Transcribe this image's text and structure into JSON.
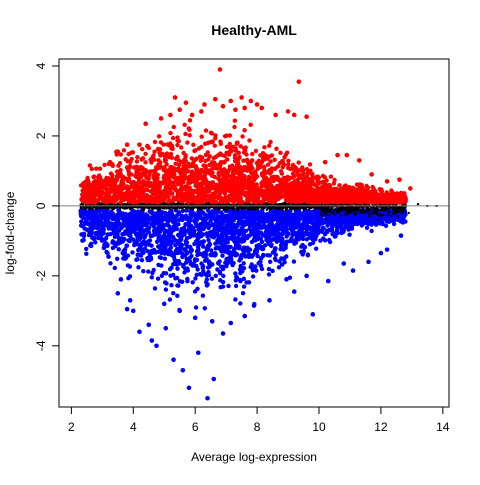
{
  "chart_data": {
    "type": "scatter",
    "title": "Healthy-AML",
    "xlabel": "Average log-expression",
    "ylabel": "log-fold-change",
    "xlim": [
      1.6,
      14.2
    ],
    "ylim": [
      -5.75,
      4.2
    ],
    "x_ticks": [
      2,
      4,
      6,
      8,
      10,
      12,
      14
    ],
    "x_tick_labels": [
      "2",
      "4",
      "6",
      "8",
      "10",
      "12",
      "14"
    ],
    "y_ticks": [
      -4,
      -2,
      0,
      2,
      4
    ],
    "y_tick_labels": [
      "-4",
      "-2",
      "0",
      "2",
      "4"
    ],
    "grid": false,
    "reference_line": {
      "y": 0,
      "color": "#808080"
    },
    "series": [
      {
        "color": "#ff0000",
        "description": "up-regulated",
        "points": [
          [
            6.8,
            3.9
          ],
          [
            9.35,
            3.55
          ],
          [
            5.35,
            3.1
          ],
          [
            6.65,
            3.05
          ],
          [
            5.7,
            2.95
          ],
          [
            7.15,
            3.0
          ],
          [
            7.5,
            3.1
          ],
          [
            7.8,
            3.0
          ],
          [
            8.0,
            2.9
          ],
          [
            8.15,
            2.8
          ],
          [
            8.6,
            2.6
          ],
          [
            9.0,
            2.7
          ],
          [
            9.2,
            2.6
          ],
          [
            9.6,
            2.55
          ],
          [
            6.2,
            2.7
          ],
          [
            6.9,
            2.85
          ],
          [
            5.9,
            2.6
          ],
          [
            6.3,
            2.9
          ],
          [
            4.9,
            2.5
          ],
          [
            5.2,
            2.6
          ],
          [
            5.5,
            2.75
          ],
          [
            7.3,
            2.75
          ],
          [
            7.6,
            2.8
          ],
          [
            4.4,
            2.35
          ],
          [
            4.2,
            1.75
          ],
          [
            3.8,
            1.75
          ],
          [
            3.5,
            1.55
          ],
          [
            10.6,
            1.45
          ],
          [
            10.9,
            1.45
          ],
          [
            11.3,
            1.3
          ],
          [
            12.6,
            0.75
          ],
          [
            12.95,
            0.5
          ],
          [
            11.7,
            0.9
          ],
          [
            12.2,
            0.7
          ],
          [
            10.2,
            1.25
          ],
          [
            12.7,
            0.35
          ],
          [
            3.0,
            0.6
          ],
          [
            3.25,
            1.25
          ]
        ]
      },
      {
        "color": "#0000ff",
        "description": "down-regulated",
        "points": [
          [
            6.4,
            -5.5
          ],
          [
            5.8,
            -5.2
          ],
          [
            6.6,
            -4.95
          ],
          [
            5.6,
            -4.7
          ],
          [
            5.3,
            -4.4
          ],
          [
            6.1,
            -4.2
          ],
          [
            4.5,
            -3.4
          ],
          [
            4.75,
            -4.0
          ],
          [
            5.05,
            -3.5
          ],
          [
            4.2,
            -3.6
          ],
          [
            4.6,
            -3.85
          ],
          [
            4.0,
            -3.0
          ],
          [
            3.8,
            -2.95
          ],
          [
            3.5,
            -2.5
          ],
          [
            3.9,
            -2.7
          ],
          [
            5.0,
            -2.8
          ],
          [
            5.5,
            -3.0
          ],
          [
            6.0,
            -3.2
          ],
          [
            6.9,
            -3.65
          ],
          [
            7.15,
            -3.35
          ],
          [
            7.6,
            -3.15
          ],
          [
            6.55,
            -3.3
          ],
          [
            8.4,
            -2.7
          ],
          [
            7.9,
            -2.85
          ],
          [
            9.8,
            -3.1
          ],
          [
            9.2,
            -2.45
          ],
          [
            10.3,
            -2.15
          ],
          [
            11.1,
            -1.85
          ],
          [
            11.6,
            -1.6
          ],
          [
            12.2,
            -1.25
          ],
          [
            12.65,
            -0.85
          ],
          [
            12.0,
            -1.35
          ],
          [
            10.8,
            -1.65
          ],
          [
            3.2,
            -1.45
          ],
          [
            3.05,
            -1.2
          ],
          [
            3.6,
            -2.1
          ],
          [
            8.95,
            -2.1
          ],
          [
            9.6,
            -2.0
          ]
        ]
      },
      {
        "color": "#000000",
        "description": "non-significant",
        "points": [
          [
            12.8,
            0.1
          ],
          [
            13.2,
            0.05
          ],
          [
            13.5,
            0.0
          ],
          [
            13.8,
            0.0
          ],
          [
            12.55,
            -0.3
          ],
          [
            12.9,
            -0.2
          ],
          [
            11.9,
            -0.4
          ],
          [
            12.3,
            0.25
          ],
          [
            2.35,
            0.0
          ]
        ]
      }
    ]
  }
}
